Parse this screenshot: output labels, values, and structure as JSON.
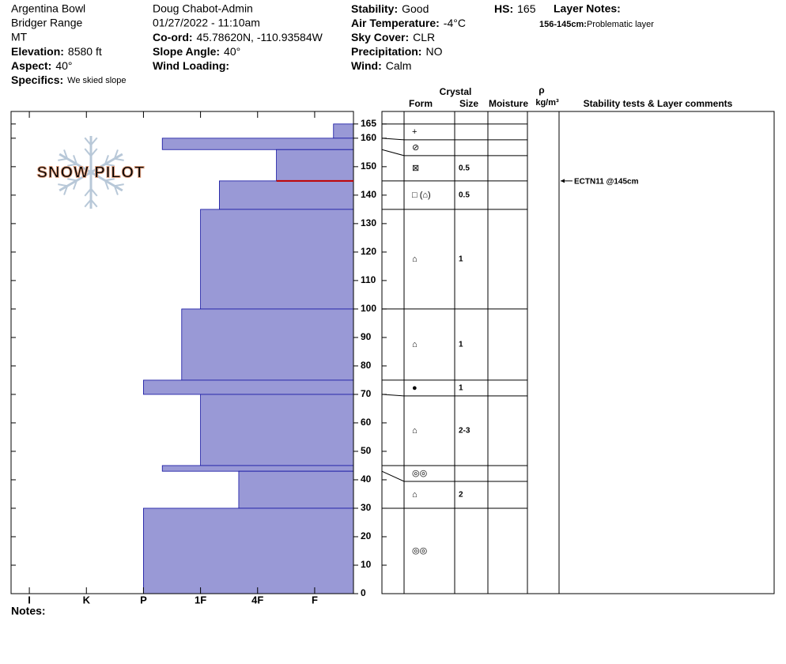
{
  "header": {
    "columns": [
      [
        {
          "text": "Argentina Bowl"
        },
        {
          "text": "Bridger Range"
        },
        {
          "text": "MT"
        },
        {
          "label": "Elevation:",
          "value": "8580 ft"
        },
        {
          "label": "Aspect:",
          "value": "40°"
        },
        {
          "label": "Specifics:",
          "value": "We skied slope"
        }
      ],
      [
        {
          "text": "Doug Chabot-Admin"
        },
        {
          "text": "01/27/2022 - 11:10am"
        },
        {
          "label": "Co-ord:",
          "value": "45.78620N, -110.93584W"
        },
        {
          "label": "Slope Angle:",
          "value": "40°"
        },
        {
          "label": "Wind Loading:"
        }
      ],
      [
        {
          "label": "Stability:",
          "value": "Good"
        },
        {
          "label": "Air Temperature:",
          "value": "-4°C"
        },
        {
          "label": "Sky Cover:",
          "value": "CLR"
        },
        {
          "label": "Precipitation:",
          "value": "NO"
        },
        {
          "label": "Wind:",
          "value": "Calm"
        }
      ],
      [
        {
          "label": "HS:",
          "value": "165"
        }
      ]
    ],
    "layer_notes": {
      "title": "Layer Notes:",
      "entries": [
        {
          "label": "156-145cm:",
          "value": "Problematic layer"
        }
      ]
    }
  },
  "logo": "SNOW PILOT",
  "notes_label": "Notes:",
  "chart_data": {
    "type": "snow-profile",
    "xlim": [
      6.32,
      0.32
    ],
    "xticks": [
      {
        "value": 6,
        "label": "I"
      },
      {
        "value": 5,
        "label": "K"
      },
      {
        "value": 4,
        "label": "P"
      },
      {
        "value": 3,
        "label": "1F"
      },
      {
        "value": 2,
        "label": "4F"
      },
      {
        "value": 1,
        "label": "F"
      }
    ],
    "ylim": [
      0,
      169.4
    ],
    "yticks": [
      0,
      10,
      20,
      30,
      40,
      50,
      60,
      70,
      80,
      90,
      100,
      110,
      120,
      130,
      140,
      150,
      160,
      165
    ],
    "color": "#9999d6",
    "columns": {
      "crystal": "Crystal",
      "form": "Form",
      "size": "Size",
      "moisture": "Moisture",
      "rho": "ρ",
      "density_unit": "kg/m³",
      "comments": "Stability tests & Layer comments"
    },
    "layers": {
      "top": [
        165,
        160,
        156,
        145,
        135,
        100,
        75,
        70,
        45,
        43,
        30
      ],
      "bottom": [
        160,
        156,
        145,
        135,
        100,
        75,
        70,
        45,
        43,
        30,
        0
      ],
      "hardness": [
        0.67,
        3.67,
        1.67,
        2.67,
        3,
        3.33,
        4,
        3,
        3.67,
        2.33,
        4
      ],
      "form": [
        "+",
        "⊘",
        "⊠",
        "□ (⌂)",
        "⌂",
        "⌂",
        "●",
        "⌂",
        "◎◎",
        "⌂",
        "◎◎"
      ],
      "size": [
        null,
        null,
        0.5,
        0.5,
        1,
        1,
        1,
        "2-3",
        null,
        2,
        null
      ]
    },
    "tests": [
      {
        "label": "ECTN11 @145cm",
        "depth": 145
      }
    ]
  }
}
